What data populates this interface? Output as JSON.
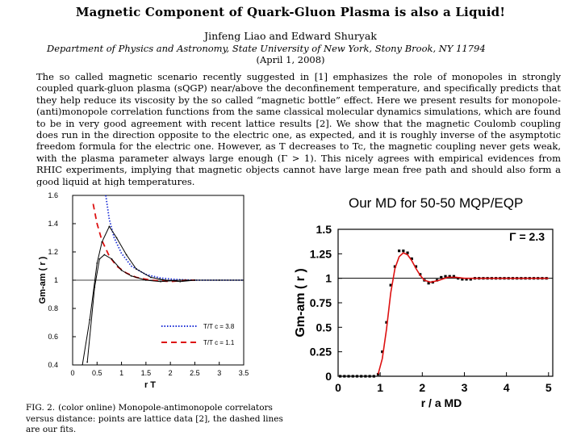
{
  "paper": {
    "title": "Magnetic Component of Quark-Gluon Plasma is also a Liquid!",
    "authors": "Jinfeng Liao and Edward Shuryak",
    "affiliation": "Department of Physics and Astronomy, State University of New York, Stony Brook, NY 11794",
    "date": "(April 1, 2008)",
    "abstract": "The so called magnetic scenario recently suggested in [1] emphasizes the role of monopoles in strongly coupled quark-gluon plasma (sQGP) near/above the deconfinement temperature, and specifically predicts that they help reduce its viscosity by the so called “magnetic bottle” effect. Here we present results for monopole-(anti)monopole correlation functions from the same classical molecular dynamics simulations, which are found to be in very good agreement with recent lattice results [2]. We show that the magnetic Coulomb coupling does run in the direction opposite to the electric one, as expected, and it is roughly inverse of the asymptotic freedom formula for the electric one. However, as T decreases to Tc, the magnetic coupling never gets weak, with the plasma parameter always large enough (Γ > 1). This nicely agrees with empirical evidences from RHIC experiments, implying that magnetic objects cannot have large mean free path and should also form a good liquid at high temperatures.",
    "caption_label": "FIG. 2.",
    "caption_text": "(color online) Monopole-antimonopole correlators versus distance: points are lattice data [2], the dashed lines are our fits."
  },
  "colors": {
    "blue": "#1c2fd6",
    "red": "#dd1111",
    "black": "#000000"
  },
  "chart_data": [
    {
      "type": "line",
      "title": "",
      "xlabel": "r T",
      "ylabel": "Gm-am ( r )",
      "xlim": [
        0,
        3.5
      ],
      "ylim": [
        0.4,
        1.6
      ],
      "xticks": [
        "0",
        "0.5",
        "1",
        "1.5",
        "2",
        "2.5",
        "3",
        "3.5"
      ],
      "yticks": [
        "0.4",
        "0.6",
        "0.8",
        "1",
        "1.2",
        "1.4",
        "1.6"
      ],
      "reference_line": 1,
      "legend_position": "bottom-right",
      "series": [
        {
          "name": "T/T c = 3.8",
          "style": "dotted",
          "color": "#1c2fd6",
          "x": [
            0.67,
            0.75,
            0.85,
            1.0,
            1.2,
            1.5,
            1.8,
            2.1,
            2.5,
            3.0,
            3.5
          ],
          "y": [
            1.62,
            1.43,
            1.3,
            1.19,
            1.1,
            1.04,
            1.015,
            1.005,
            1.0,
            1.0,
            1.0
          ]
        },
        {
          "name": "T/T c = 1.1",
          "style": "dashed",
          "color": "#dd1111",
          "x": [
            0.42,
            0.5,
            0.6,
            0.75,
            0.9,
            1.1,
            1.3,
            1.6,
            2.0,
            2.3,
            2.5
          ],
          "y": [
            1.54,
            1.4,
            1.28,
            1.17,
            1.1,
            1.05,
            1.02,
            1.0,
            0.99,
            1.0,
            1.0
          ]
        },
        {
          "name": "",
          "style": "solid-points",
          "color": "#000000",
          "x": [
            0.2,
            0.35,
            0.5,
            0.6,
            0.75,
            0.9,
            1.1,
            1.3,
            1.6,
            1.9,
            2.2,
            2.5,
            3.0,
            3.5
          ],
          "y": [
            0.4,
            0.72,
            1.12,
            1.27,
            1.38,
            1.3,
            1.18,
            1.08,
            1.02,
            1.0,
            0.99,
            1.0,
            1.0,
            1.0
          ]
        },
        {
          "name": "",
          "style": "solid-points",
          "color": "#000000",
          "x": [
            0.3,
            0.45,
            0.55,
            0.65,
            0.8,
            1.0,
            1.2,
            1.5,
            1.8,
            2.2,
            2.5
          ],
          "y": [
            0.42,
            0.95,
            1.15,
            1.18,
            1.15,
            1.07,
            1.03,
            1.0,
            0.99,
            1.0,
            1.0
          ]
        }
      ]
    },
    {
      "type": "scatter",
      "title": "Our MD for 50-50 MQP/EQP",
      "annotation": "Γ = 2.3",
      "xlabel": "r / a MD",
      "ylabel": "Gm-am ( r )",
      "xlim": [
        0,
        5.1
      ],
      "ylim": [
        0,
        1.5
      ],
      "xticks": [
        "0",
        "1",
        "2",
        "3",
        "4",
        "5"
      ],
      "yticks": [
        "0",
        "0.25",
        "0.5",
        "0.75",
        "1",
        "1.25",
        "1.5"
      ],
      "reference_line": 1,
      "series": [
        {
          "name": "",
          "type": "scatter",
          "color": "#000000",
          "x": [
            0.05,
            0.15,
            0.25,
            0.35,
            0.45,
            0.55,
            0.65,
            0.75,
            0.85,
            0.95,
            1.05,
            1.15,
            1.25,
            1.35,
            1.45,
            1.55,
            1.65,
            1.75,
            1.85,
            1.95,
            2.05,
            2.15,
            2.25,
            2.35,
            2.45,
            2.55,
            2.65,
            2.75,
            2.85,
            2.95,
            3.05,
            3.15,
            3.25,
            3.35,
            3.45,
            3.55,
            3.65,
            3.75,
            3.85,
            3.95,
            4.05,
            4.15,
            4.25,
            4.35,
            4.45,
            4.55,
            4.65,
            4.75,
            4.85,
            4.95
          ],
          "y": [
            0,
            0,
            0,
            0,
            0,
            0,
            0,
            0,
            0,
            0.02,
            0.25,
            0.55,
            0.93,
            1.12,
            1.28,
            1.28,
            1.26,
            1.2,
            1.12,
            1.04,
            0.98,
            0.95,
            0.96,
            0.98,
            1.01,
            1.02,
            1.02,
            1.02,
            1.0,
            0.99,
            0.99,
            0.99,
            1.0,
            1.0,
            1.0,
            1.0,
            1.0,
            1.0,
            1.0,
            1.0,
            1.0,
            1.0,
            1.0,
            1.0,
            1.0,
            1.0,
            1.0,
            1.0,
            1.0,
            1.0
          ]
        },
        {
          "name": "",
          "type": "line",
          "color": "#dd1111",
          "x": [
            0.95,
            1.05,
            1.15,
            1.25,
            1.35,
            1.45,
            1.55,
            1.65,
            1.75,
            1.85,
            1.95,
            2.05,
            2.2,
            2.4,
            2.6,
            2.8,
            3.0,
            3.5,
            4.0,
            4.5,
            5.0
          ],
          "y": [
            0.02,
            0.18,
            0.48,
            0.85,
            1.1,
            1.22,
            1.26,
            1.24,
            1.18,
            1.1,
            1.03,
            0.98,
            0.96,
            0.98,
            1.01,
            1.01,
            1.0,
            1.0,
            1.0,
            1.0,
            1.0
          ]
        }
      ]
    }
  ]
}
